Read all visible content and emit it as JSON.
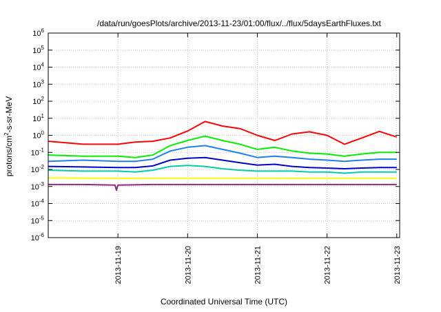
{
  "chart_data": {
    "type": "line",
    "title": "/data/run/goesPlots/archive/2013-11-23/01:00/flux/../flux/5daysEarthFluxes.txt",
    "xlabel": "Coordinated Universal Time (UTC)",
    "ylabel_parts": {
      "base": "protons/cm",
      "exp": "2",
      "rest": "-s-sr-MeV"
    },
    "yscale": "log",
    "ylim": [
      1e-06,
      1000000.0
    ],
    "xlim": [
      "2013-11-18 00:00",
      "2013-11-23 01:00"
    ],
    "grid": true,
    "y_ticks": [
      {
        "value": 1e-06,
        "base": "10",
        "exp": "-6"
      },
      {
        "value": 1e-05,
        "base": "10",
        "exp": "-5"
      },
      {
        "value": 0.0001,
        "base": "10",
        "exp": "-4"
      },
      {
        "value": 0.001,
        "base": "10",
        "exp": "-3"
      },
      {
        "value": 0.01,
        "base": "10",
        "exp": "-2"
      },
      {
        "value": 0.1,
        "base": "10",
        "exp": "-1"
      },
      {
        "value": 1.0,
        "base": "10",
        "exp": "0"
      },
      {
        "value": 10.0,
        "base": "10",
        "exp": "1"
      },
      {
        "value": 100.0,
        "base": "10",
        "exp": "2"
      },
      {
        "value": 1000.0,
        "base": "10",
        "exp": "3"
      },
      {
        "value": 10000.0,
        "base": "10",
        "exp": "4"
      },
      {
        "value": 100000.0,
        "base": "10",
        "exp": "5"
      },
      {
        "value": 1000000.0,
        "base": "10",
        "exp": "6"
      }
    ],
    "x_ticks": [
      "2013-11-19",
      "2013-11-20",
      "2013-11-21",
      "2013-11-22",
      "2013-11-23"
    ],
    "series": [
      {
        "color": "#ff0000",
        "x": [
          "2013-11-18 00:00",
          "2013-11-18 12:00",
          "2013-11-19 00:00",
          "2013-11-19 06:00",
          "2013-11-19 12:00",
          "2013-11-19 18:00",
          "2013-11-20 00:00",
          "2013-11-20 06:00",
          "2013-11-20 12:00",
          "2013-11-20 18:00",
          "2013-11-21 00:00",
          "2013-11-21 06:00",
          "2013-11-21 12:00",
          "2013-11-21 18:00",
          "2013-11-22 00:00",
          "2013-11-22 06:00",
          "2013-11-22 12:00",
          "2013-11-22 18:00",
          "2013-11-23 00:00"
        ],
        "values": [
          0.45,
          0.3,
          0.3,
          0.4,
          0.45,
          0.7,
          1.8,
          6.5,
          3.5,
          2.5,
          1.0,
          0.5,
          1.2,
          1.6,
          1.0,
          0.3,
          0.7,
          1.7,
          0.8
        ]
      },
      {
        "color": "#00ee00",
        "x": [
          "2013-11-18 00:00",
          "2013-11-18 12:00",
          "2013-11-19 00:00",
          "2013-11-19 06:00",
          "2013-11-19 12:00",
          "2013-11-19 18:00",
          "2013-11-20 00:00",
          "2013-11-20 06:00",
          "2013-11-20 12:00",
          "2013-11-20 18:00",
          "2013-11-21 00:00",
          "2013-11-21 06:00",
          "2013-11-21 12:00",
          "2013-11-21 18:00",
          "2013-11-22 00:00",
          "2013-11-22 06:00",
          "2013-11-22 12:00",
          "2013-11-22 18:00",
          "2013-11-23 00:00"
        ],
        "values": [
          0.07,
          0.06,
          0.06,
          0.05,
          0.07,
          0.25,
          0.5,
          0.9,
          0.5,
          0.3,
          0.15,
          0.2,
          0.12,
          0.09,
          0.08,
          0.06,
          0.08,
          0.1,
          0.1
        ]
      },
      {
        "color": "#1e7ff0",
        "x": [
          "2013-11-18 00:00",
          "2013-11-18 12:00",
          "2013-11-19 00:00",
          "2013-11-19 06:00",
          "2013-11-19 12:00",
          "2013-11-19 18:00",
          "2013-11-20 00:00",
          "2013-11-20 06:00",
          "2013-11-20 12:00",
          "2013-11-20 18:00",
          "2013-11-21 00:00",
          "2013-11-21 06:00",
          "2013-11-21 12:00",
          "2013-11-21 18:00",
          "2013-11-22 00:00",
          "2013-11-22 06:00",
          "2013-11-22 12:00",
          "2013-11-22 18:00",
          "2013-11-23 00:00"
        ],
        "values": [
          0.03,
          0.035,
          0.03,
          0.03,
          0.04,
          0.12,
          0.2,
          0.25,
          0.15,
          0.09,
          0.05,
          0.06,
          0.05,
          0.04,
          0.035,
          0.03,
          0.035,
          0.04,
          0.04
        ]
      },
      {
        "color": "#0000cc",
        "x": [
          "2013-11-18 00:00",
          "2013-11-18 12:00",
          "2013-11-19 00:00",
          "2013-11-19 06:00",
          "2013-11-19 12:00",
          "2013-11-19 18:00",
          "2013-11-20 00:00",
          "2013-11-20 06:00",
          "2013-11-20 12:00",
          "2013-11-20 18:00",
          "2013-11-21 00:00",
          "2013-11-21 06:00",
          "2013-11-21 12:00",
          "2013-11-21 18:00",
          "2013-11-22 00:00",
          "2013-11-22 06:00",
          "2013-11-22 12:00",
          "2013-11-22 18:00",
          "2013-11-23 00:00"
        ],
        "values": [
          0.015,
          0.014,
          0.013,
          0.013,
          0.016,
          0.035,
          0.045,
          0.05,
          0.035,
          0.025,
          0.018,
          0.02,
          0.015,
          0.013,
          0.012,
          0.011,
          0.012,
          0.013,
          0.013
        ]
      },
      {
        "color": "#00ccaa",
        "x": [
          "2013-11-18 00:00",
          "2013-11-18 12:00",
          "2013-11-19 00:00",
          "2013-11-19 06:00",
          "2013-11-19 12:00",
          "2013-11-19 18:00",
          "2013-11-20 00:00",
          "2013-11-20 06:00",
          "2013-11-20 12:00",
          "2013-11-20 18:00",
          "2013-11-21 00:00",
          "2013-11-21 06:00",
          "2013-11-21 12:00",
          "2013-11-21 18:00",
          "2013-11-22 00:00",
          "2013-11-22 06:00",
          "2013-11-22 12:00",
          "2013-11-22 18:00",
          "2013-11-23 00:00"
        ],
        "values": [
          0.009,
          0.008,
          0.008,
          0.007,
          0.009,
          0.015,
          0.017,
          0.015,
          0.011,
          0.009,
          0.008,
          0.008,
          0.008,
          0.007,
          0.007,
          0.006,
          0.007,
          0.007,
          0.007
        ]
      },
      {
        "color": "#ffff00",
        "x": [
          "2013-11-18 00:00",
          "2013-11-19 00:00",
          "2013-11-20 00:00",
          "2013-11-21 00:00",
          "2013-11-22 00:00",
          "2013-11-23 00:00"
        ],
        "values": [
          0.0032,
          0.003,
          0.003,
          0.003,
          0.003,
          0.003
        ]
      },
      {
        "color": "#8b2a7a",
        "x": [
          "2013-11-18 00:00",
          "2013-11-18 12:00",
          "2013-11-18 23:00",
          "2013-11-18 23:30",
          "2013-11-19 00:00",
          "2013-11-19 12:00",
          "2013-11-20 00:00",
          "2013-11-21 00:00",
          "2013-11-22 00:00",
          "2013-11-23 00:00"
        ],
        "values": [
          0.0013,
          0.0013,
          0.0012,
          0.0006,
          0.0012,
          0.0013,
          0.0013,
          0.0013,
          0.0013,
          0.0013
        ]
      }
    ]
  }
}
